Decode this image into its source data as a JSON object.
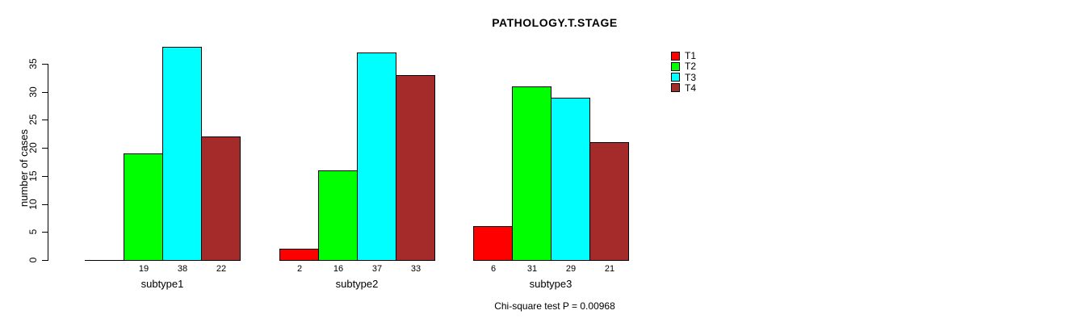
{
  "title": "PATHOLOGY.T.STAGE",
  "subtitle": "Chi-square test P = 0.00968",
  "ylabel": "number of cases",
  "legend": [
    {
      "label": "T1",
      "color": "#FF0000"
    },
    {
      "label": "T2",
      "color": "#00FF00"
    },
    {
      "label": "T3",
      "color": "#00FFFF"
    },
    {
      "label": "T4",
      "color": "#A52A2A"
    }
  ],
  "chart_data": {
    "type": "bar",
    "title": "PATHOLOGY.T.STAGE",
    "xlabel": "",
    "ylabel": "number of cases",
    "categories": [
      "subtype1",
      "subtype2",
      "subtype3"
    ],
    "series": [
      {
        "name": "T1",
        "color": "#FF0000",
        "values": [
          0,
          2,
          6
        ]
      },
      {
        "name": "T2",
        "color": "#00FF00",
        "values": [
          19,
          16,
          31
        ]
      },
      {
        "name": "T3",
        "color": "#00FFFF",
        "values": [
          38,
          37,
          29
        ]
      },
      {
        "name": "T4",
        "color": "#A52A2A",
        "values": [
          22,
          33,
          21
        ]
      }
    ],
    "bar_value_labels": [
      [
        "",
        "19",
        "38",
        "22"
      ],
      [
        "2",
        "16",
        "37",
        "33"
      ],
      [
        "6",
        "31",
        "29",
        "21"
      ]
    ],
    "yticks": [
      0,
      5,
      10,
      15,
      20,
      25,
      30,
      35
    ],
    "ylim": [
      0,
      38
    ],
    "grid": false,
    "legend_position": "top-right",
    "annotation": "Chi-square test P = 0.00968",
    "axis_color": "#000000",
    "background_color": "#FFFFFF"
  }
}
